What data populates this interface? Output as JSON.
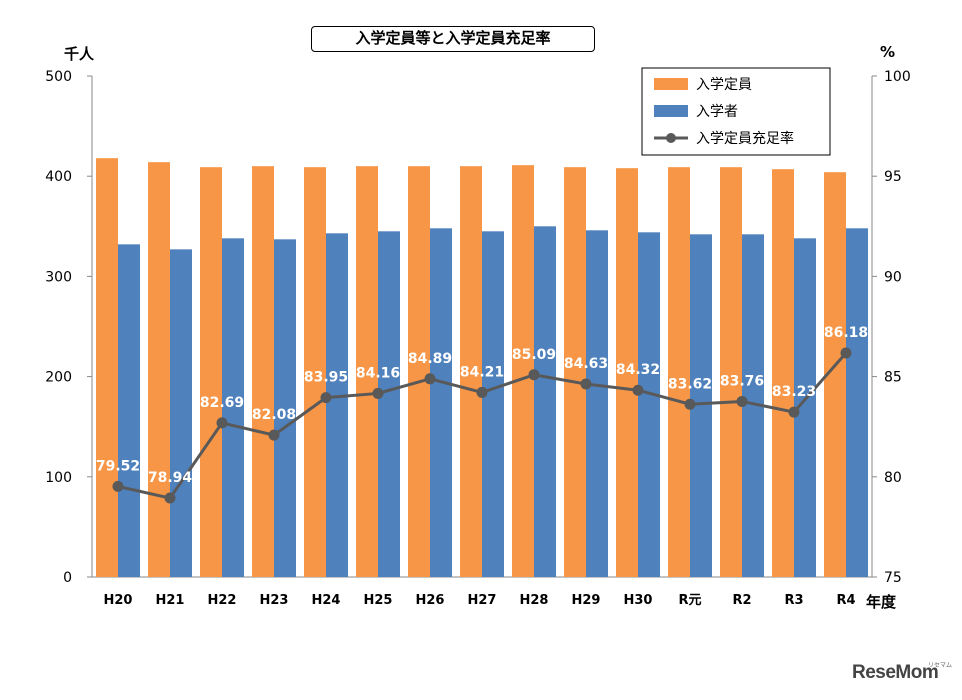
{
  "chart_data": {
    "type": "bar",
    "title": "入学定員等と入学定員充足率",
    "y_left_unit": "千人",
    "y_right_unit": "%",
    "x_unit": "年度",
    "categories": [
      "H20",
      "H21",
      "H22",
      "H23",
      "H24",
      "H25",
      "H26",
      "H27",
      "H28",
      "H29",
      "H30",
      "R元",
      "R2",
      "R3",
      "R4"
    ],
    "ylim_left": [
      0,
      500
    ],
    "yticks_left": [
      0,
      100,
      200,
      300,
      400,
      500
    ],
    "ylim_right": [
      75,
      100
    ],
    "yticks_right": [
      75,
      80,
      85,
      90,
      95,
      100
    ],
    "grid": false,
    "legend_position": "top-right",
    "series": [
      {
        "name": "入学定員",
        "kind": "bar",
        "axis": "left",
        "color": "#F79646",
        "values": [
          418,
          414,
          409,
          410,
          409,
          410,
          410,
          410,
          411,
          409,
          408,
          409,
          409,
          407,
          404
        ]
      },
      {
        "name": "入学者",
        "kind": "bar",
        "axis": "left",
        "color": "#4F81BD",
        "values": [
          332,
          327,
          338,
          337,
          343,
          345,
          348,
          345,
          350,
          346,
          344,
          342,
          342,
          338,
          348
        ]
      },
      {
        "name": "入学定員充足率",
        "kind": "line",
        "axis": "right",
        "color": "#595959",
        "values": [
          79.52,
          78.94,
          82.69,
          82.08,
          83.95,
          84.16,
          84.89,
          84.21,
          85.09,
          84.63,
          84.32,
          83.62,
          83.76,
          83.23,
          86.18
        ],
        "labels": [
          "79.52",
          "78.94",
          "82.69",
          "82.08",
          "83.95",
          "84.16",
          "84.89",
          "84.21",
          "85.09",
          "84.63",
          "84.32",
          "83.62",
          "83.76",
          "83.23",
          "86.18"
        ]
      }
    ]
  },
  "watermark": {
    "text": "ReseMom",
    "note": "リセマム"
  }
}
